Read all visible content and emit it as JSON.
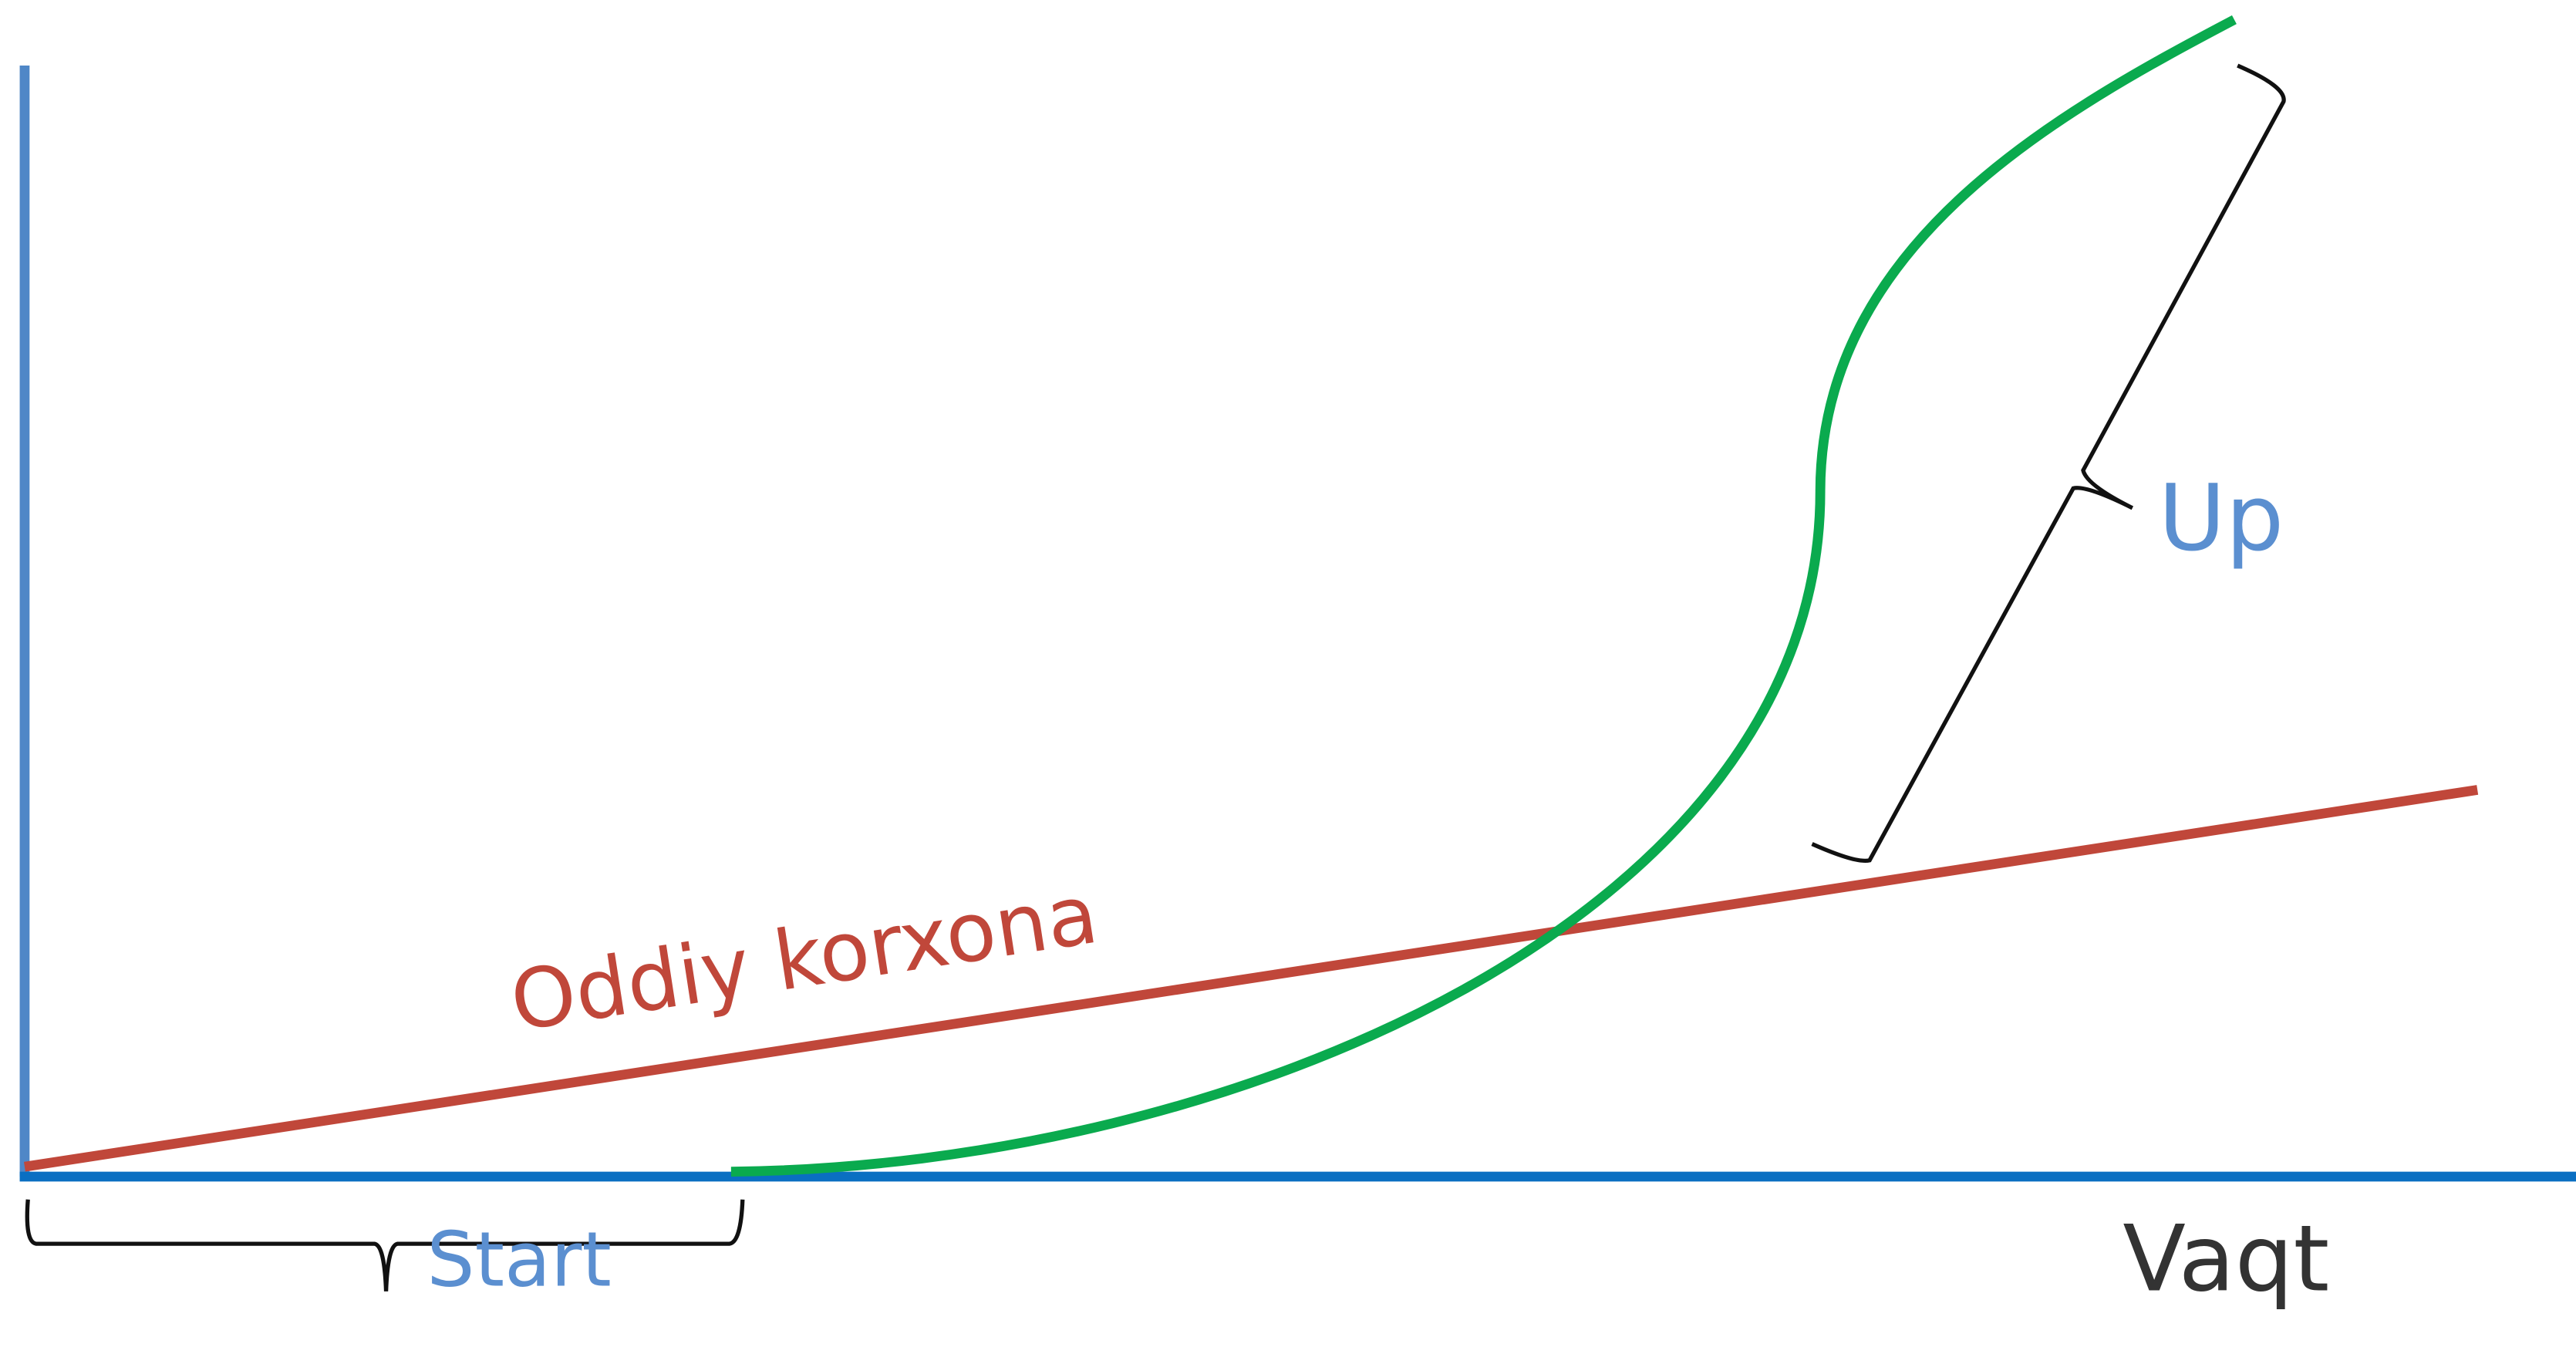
{
  "labels": {
    "line": "Oddiy korxona",
    "up": "Up",
    "start": "Start",
    "x_axis": "Vaqt"
  }
}
